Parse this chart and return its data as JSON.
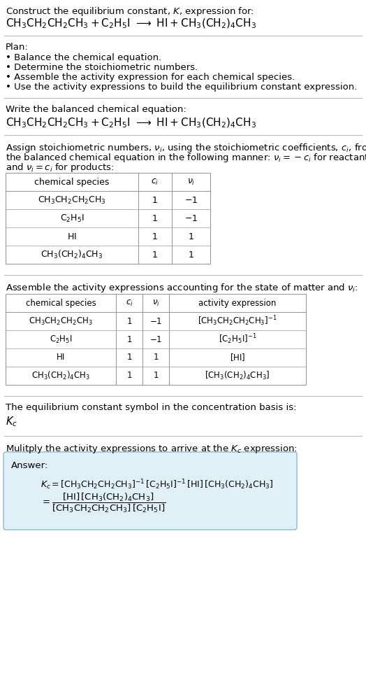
{
  "bg_color": "#ffffff",
  "text_color": "#000000",
  "font_size": 9.5,
  "table_line_color": "#999999",
  "answer_box_facecolor": "#dff0f7",
  "answer_box_edgecolor": "#88bbcc"
}
